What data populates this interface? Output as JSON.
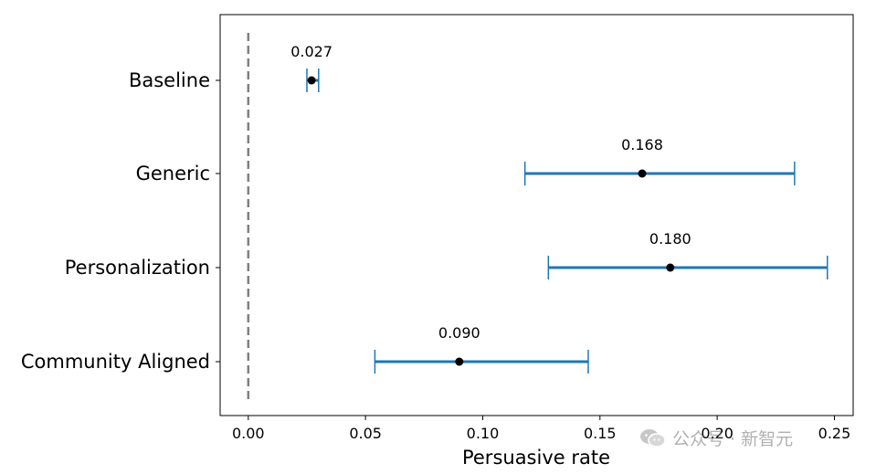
{
  "chart_data": {
    "type": "errorbar",
    "categories": [
      "Baseline",
      "Generic",
      "Personalization",
      "Community Aligned"
    ],
    "values": [
      0.027,
      0.168,
      0.18,
      0.09
    ],
    "value_labels": [
      "0.027",
      "0.168",
      "0.180",
      "0.090"
    ],
    "ci_low": [
      0.025,
      0.118,
      0.128,
      0.054
    ],
    "ci_high": [
      0.03,
      0.233,
      0.247,
      0.145
    ],
    "xlabel": "Persuasive rate",
    "ylabel": "",
    "xlim": [
      -0.012,
      0.258
    ],
    "xticks": [
      0.0,
      0.05,
      0.1,
      0.15,
      0.2,
      0.25
    ],
    "xtick_labels": [
      "0.00",
      "0.05",
      "0.10",
      "0.15",
      "0.20",
      "0.25"
    ],
    "reference_line": {
      "x": 0.0,
      "style": "dashed",
      "color": "#808080"
    },
    "grid": false,
    "colors": {
      "errorbar": "#1f77b4",
      "point": "#000000"
    }
  },
  "watermark": {
    "text": "公众号 · 新智元",
    "icon": "wechat-icon"
  }
}
